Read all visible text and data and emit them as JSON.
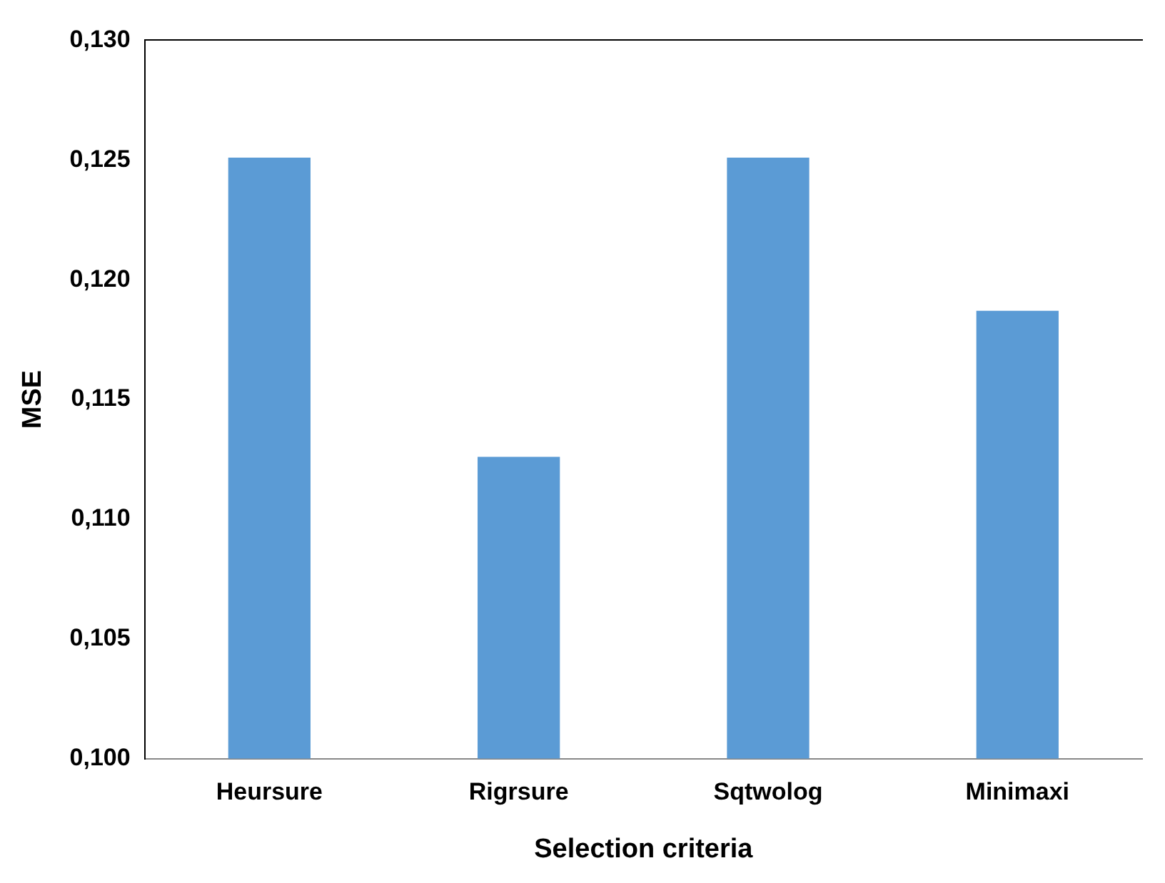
{
  "chart_data": {
    "type": "bar",
    "xlabel": "Selection criteria",
    "ylabel": "MSE",
    "categories": [
      "Heursure",
      "Rigrsure",
      "Sqtwolog",
      "Minimaxi"
    ],
    "values": [
      0.1251,
      0.1126,
      0.1251,
      0.1187
    ],
    "color": "#5b9bd5",
    "ylim": [
      0.1,
      0.13
    ],
    "yticks": [
      {
        "value": 0.1,
        "label": "0,100"
      },
      {
        "value": 0.105,
        "label": "0,105"
      },
      {
        "value": 0.11,
        "label": "0,110"
      },
      {
        "value": 0.115,
        "label": "0,115"
      },
      {
        "value": 0.12,
        "label": "0,120"
      },
      {
        "value": 0.125,
        "label": "0,125"
      },
      {
        "value": 0.13,
        "label": "0,130"
      }
    ],
    "grid": false,
    "legend": false
  }
}
